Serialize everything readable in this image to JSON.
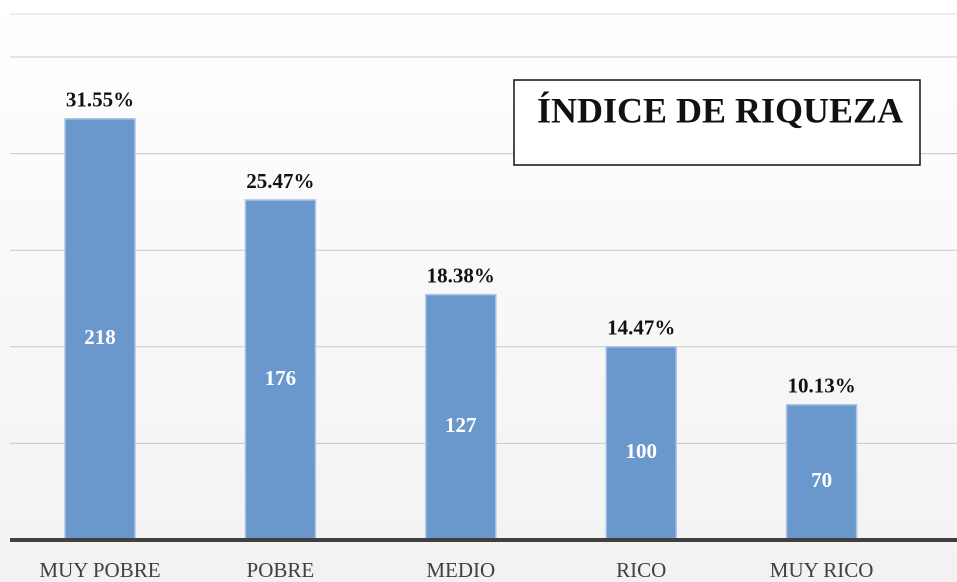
{
  "chart_data": {
    "type": "bar",
    "title": "ÍNDICE DE RIQUEZA",
    "categories": [
      "MUY POBRE",
      "POBRE",
      "MEDIO",
      "RICO",
      "MUY RICO"
    ],
    "values": [
      218,
      176,
      127,
      100,
      70
    ],
    "percent_labels": [
      "31.55%",
      "25.47%",
      "18.38%",
      "14.47%",
      "10.13%"
    ],
    "color": "#6a97cc",
    "ylim": [
      0,
      250
    ],
    "yticks": [
      0,
      50,
      100,
      150,
      200,
      250
    ],
    "grid": true
  }
}
